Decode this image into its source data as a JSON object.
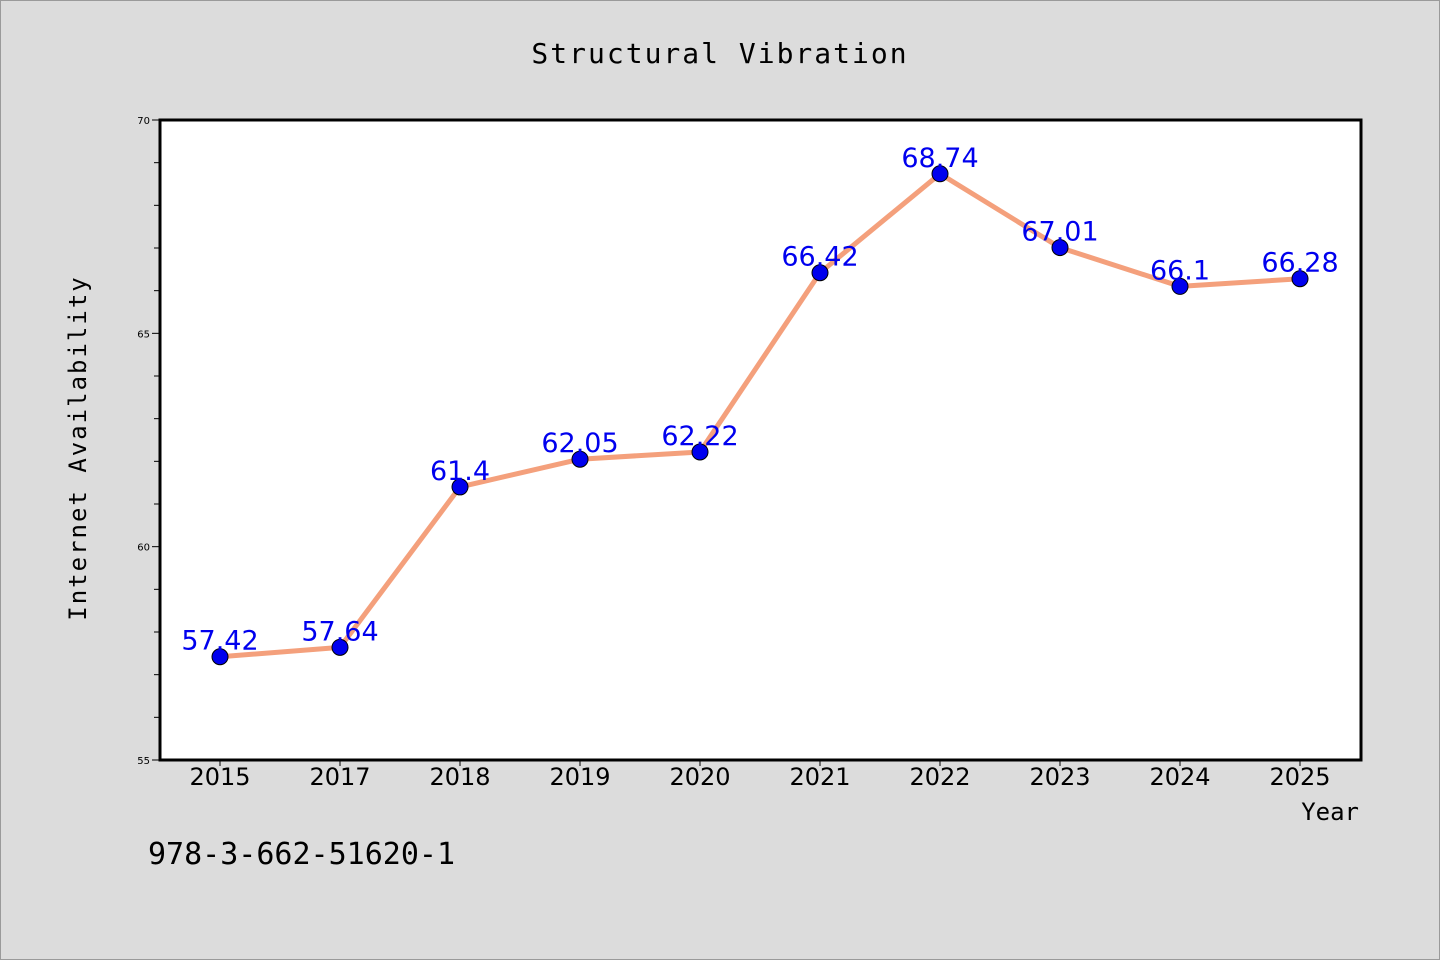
{
  "chart_data": {
    "type": "line",
    "title": "Structural Vibration",
    "xlabel": "Year",
    "ylabel": "Internet Availability",
    "categories": [
      "2015",
      "2017",
      "2018",
      "2019",
      "2020",
      "2021",
      "2022",
      "2023",
      "2024",
      "2025"
    ],
    "series": [
      {
        "values": [
          57.42,
          57.64,
          61.4,
          62.05,
          62.22,
          66.42,
          68.74,
          67.01,
          66.1,
          66.28
        ],
        "data_labels": [
          "57.42",
          "57.64",
          "61.4",
          "62.05",
          "62.22",
          "66.42",
          "68.74",
          "67.01",
          "66.1",
          "66.28"
        ],
        "line_color": "#f4a07c",
        "marker_color": "#0000ee",
        "label_color": "#0000ee"
      }
    ],
    "ylim": [
      55,
      70
    ],
    "y_ticks": [
      55,
      60,
      65,
      70
    ],
    "y_tick_labels": [
      "55",
      "60",
      "65",
      "70"
    ],
    "grid": false,
    "annotation": "978-3-662-51620-1"
  },
  "colors": {
    "figure_background": "#dcdcdc",
    "plot_background": "#ffffff",
    "axis_frame": "#000000"
  }
}
